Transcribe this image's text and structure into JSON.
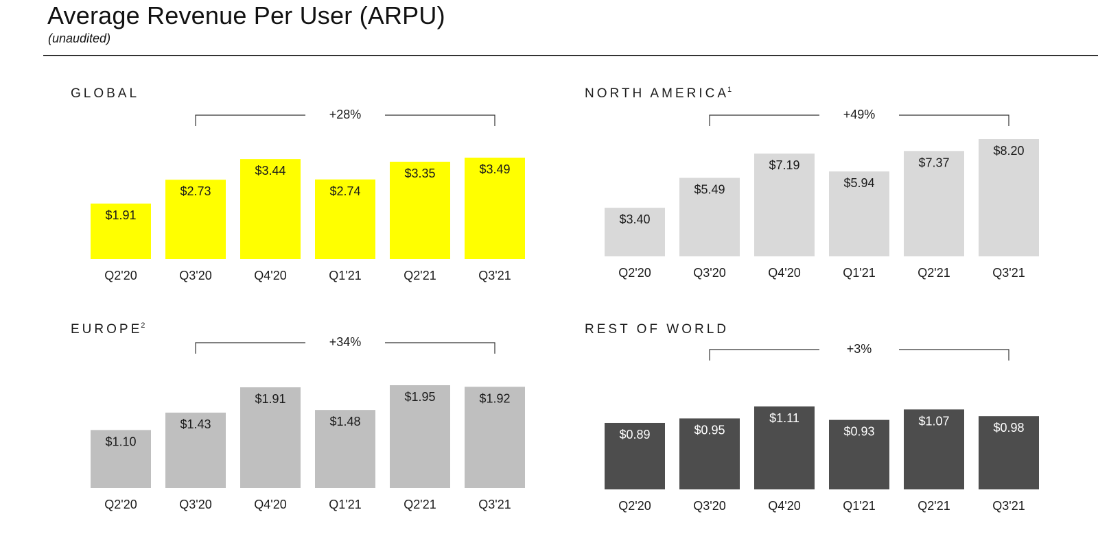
{
  "page": {
    "title": "Average Revenue Per User (ARPU)",
    "subtitle": "(unaudited)"
  },
  "chart_data": [
    {
      "type": "bar",
      "title": "GLOBAL",
      "superscript": "",
      "categories": [
        "Q2'20",
        "Q3'20",
        "Q4'20",
        "Q1'21",
        "Q2'21",
        "Q3'21"
      ],
      "values": [
        1.91,
        2.73,
        3.44,
        2.74,
        3.35,
        3.49
      ],
      "value_labels": [
        "$1.91",
        "$2.73",
        "$3.44",
        "$2.74",
        "$3.35",
        "$3.49"
      ],
      "annotation": {
        "text": "+28%",
        "from": "Q3'20",
        "to": "Q3'21"
      },
      "bar_color": "#ffff00",
      "label_color": "#1a1a1a",
      "xlabel": "",
      "ylabel": "",
      "grid": false
    },
    {
      "type": "bar",
      "title": "NORTH AMERICA",
      "superscript": "1",
      "categories": [
        "Q2'20",
        "Q3'20",
        "Q4'20",
        "Q1'21",
        "Q2'21",
        "Q3'21"
      ],
      "values": [
        3.4,
        5.49,
        7.19,
        5.94,
        7.37,
        8.2
      ],
      "value_labels": [
        "$3.40",
        "$5.49",
        "$7.19",
        "$5.94",
        "$7.37",
        "$8.20"
      ],
      "annotation": {
        "text": "+49%",
        "from": "Q3'20",
        "to": "Q3'21"
      },
      "bar_color": "#d9d9d9",
      "label_color": "#1a1a1a",
      "xlabel": "",
      "ylabel": "",
      "grid": false
    },
    {
      "type": "bar",
      "title": "EUROPE",
      "superscript": "2",
      "categories": [
        "Q2'20",
        "Q3'20",
        "Q4'20",
        "Q1'21",
        "Q2'21",
        "Q3'21"
      ],
      "values": [
        1.1,
        1.43,
        1.91,
        1.48,
        1.95,
        1.92
      ],
      "value_labels": [
        "$1.10",
        "$1.43",
        "$1.91",
        "$1.48",
        "$1.95",
        "$1.92"
      ],
      "annotation": {
        "text": "+34%",
        "from": "Q3'20",
        "to": "Q3'21"
      },
      "bar_color": "#bfbfbf",
      "label_color": "#1a1a1a",
      "xlabel": "",
      "ylabel": "",
      "grid": false
    },
    {
      "type": "bar",
      "title": "REST OF WORLD",
      "superscript": "",
      "categories": [
        "Q2'20",
        "Q3'20",
        "Q4'20",
        "Q1'21",
        "Q2'21",
        "Q3'21"
      ],
      "values": [
        0.89,
        0.95,
        1.11,
        0.93,
        1.07,
        0.98
      ],
      "value_labels": [
        "$0.89",
        "$0.95",
        "$1.11",
        "$0.93",
        "$1.07",
        "$0.98"
      ],
      "annotation": {
        "text": "+3%",
        "from": "Q3'20",
        "to": "Q3'21"
      },
      "bar_color": "#4d4d4d",
      "label_color": "#ffffff",
      "xlabel": "",
      "ylabel": "",
      "grid": false
    }
  ]
}
